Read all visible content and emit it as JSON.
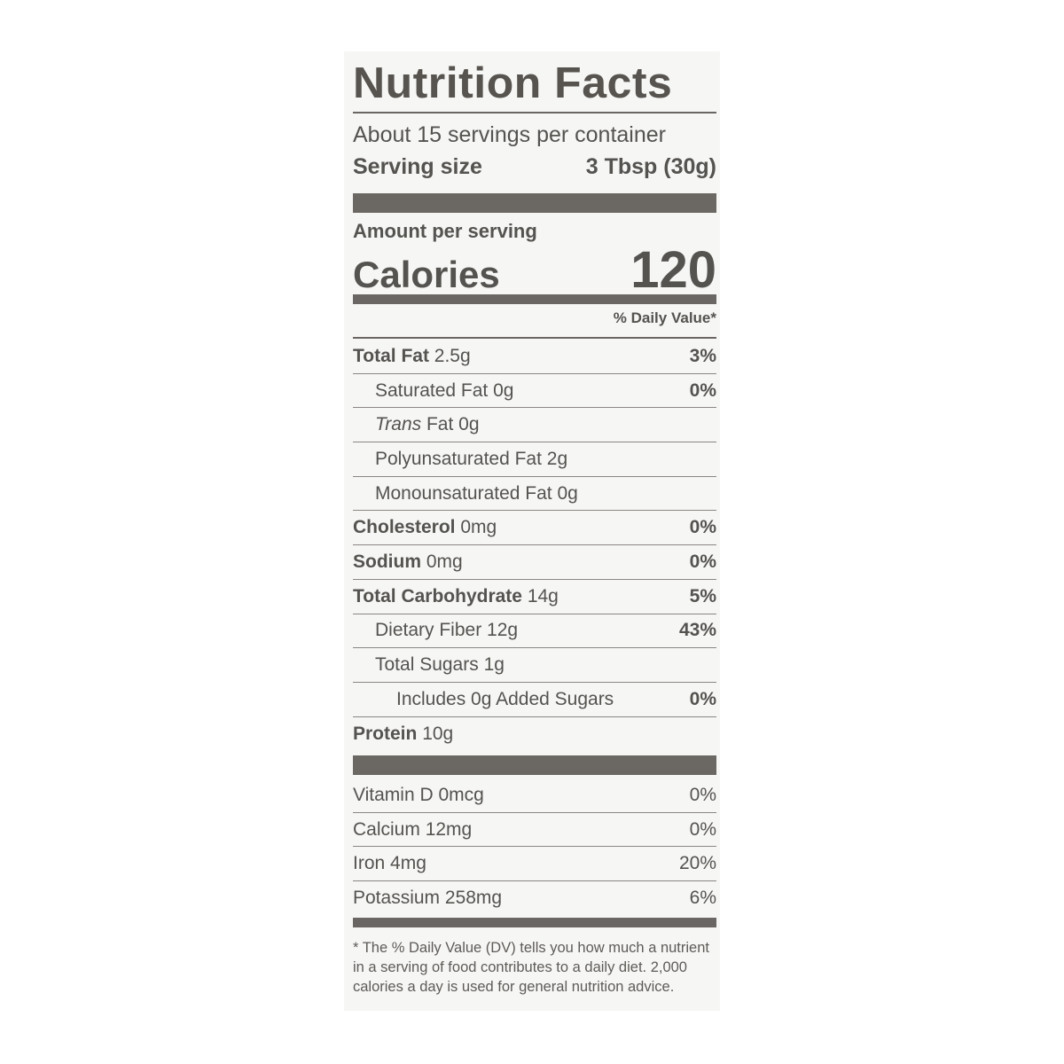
{
  "label": {
    "title": "Nutrition Facts",
    "servings_per_container": "About 15 servings per container",
    "serving_size_label": "Serving size",
    "serving_size_value": "3 Tbsp (30g)",
    "amount_per_serving": "Amount per serving",
    "calories_label": "Calories",
    "calories_value": "120",
    "daily_value_header": "% Daily Value*",
    "nutrients": [
      {
        "name": "Total Fat",
        "amount": "2.5g",
        "dv": "3%"
      },
      {
        "name": "Saturated Fat",
        "amount": "0g",
        "dv": "0%"
      },
      {
        "name": "Trans",
        "amount": "Fat 0g",
        "dv": ""
      },
      {
        "name": "Polyunsaturated Fat",
        "amount": "2g",
        "dv": ""
      },
      {
        "name": "Monounsaturated Fat",
        "amount": "0g",
        "dv": ""
      },
      {
        "name": "Cholesterol",
        "amount": "0mg",
        "dv": "0%"
      },
      {
        "name": "Sodium",
        "amount": "0mg",
        "dv": "0%"
      },
      {
        "name": "Total Carbohydrate",
        "amount": "14g",
        "dv": "5%"
      },
      {
        "name": "Dietary Fiber",
        "amount": "12g",
        "dv": "43%"
      },
      {
        "name": "Total Sugars",
        "amount": "1g",
        "dv": ""
      },
      {
        "name": "Includes 0g Added Sugars",
        "amount": "",
        "dv": "0%"
      },
      {
        "name": "Protein",
        "amount": "10g",
        "dv": ""
      }
    ],
    "vitamins": [
      {
        "name": "Vitamin D",
        "amount": "0mcg",
        "dv": "0%"
      },
      {
        "name": "Calcium",
        "amount": "12mg",
        "dv": "0%"
      },
      {
        "name": "Iron",
        "amount": "4mg",
        "dv": "20%"
      },
      {
        "name": "Potassium",
        "amount": "258mg",
        "dv": "6%"
      }
    ],
    "footnote": "* The % Daily Value (DV) tells you how much a nutrient in a serving of food contributes to a daily diet. 2,000 calories a day is used for general nutrition advice."
  }
}
